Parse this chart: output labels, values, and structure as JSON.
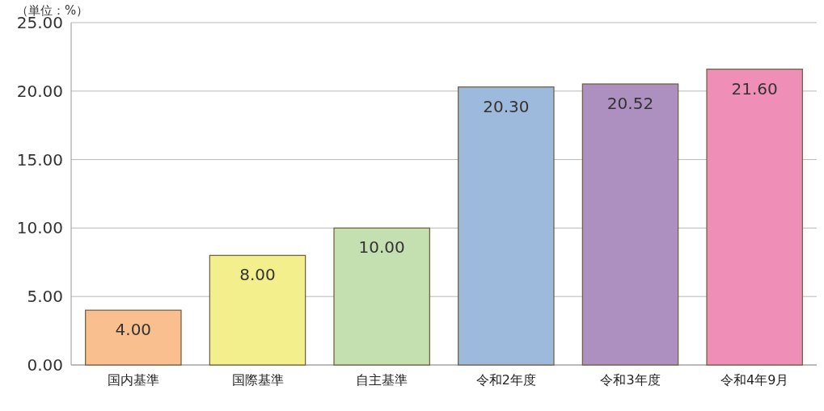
{
  "chart_data": {
    "type": "bar",
    "annotations": [
      "（単位：%）"
    ],
    "categories": [
      "国内基準",
      "国際基準",
      "自主基準",
      "令和2年度",
      "令和3年度",
      "令和4年9月"
    ],
    "values": [
      4.0,
      8.0,
      10.0,
      20.3,
      20.52,
      21.6
    ],
    "value_labels": [
      "4.00",
      "8.00",
      "10.00",
      "20.30",
      "20.52",
      "21.60"
    ],
    "colors": [
      "#f9bf8f",
      "#f3ef8d",
      "#c5e0b0",
      "#9dbadc",
      "#ad90c0",
      "#ef8fb8"
    ],
    "ylim": [
      0,
      25
    ],
    "yticks": [
      {
        "value": 0,
        "label": "0.00"
      },
      {
        "value": 5,
        "label": "5.00"
      },
      {
        "value": 10,
        "label": "10.00"
      },
      {
        "value": 15,
        "label": "15.00"
      },
      {
        "value": 20,
        "label": "20.00"
      },
      {
        "value": 25,
        "label": "25.00"
      }
    ],
    "grid": "y"
  }
}
